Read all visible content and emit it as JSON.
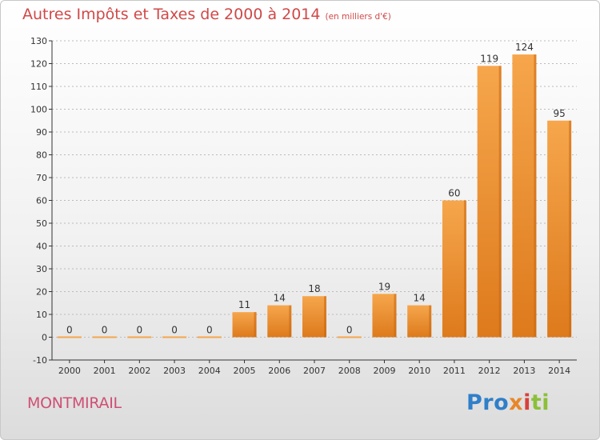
{
  "header": {
    "title": "Autres Impôts et Taxes de 2000 à 2014",
    "subtitle": "(en milliers d'€)"
  },
  "footer": {
    "place": "MONTMIRAIL",
    "logo": [
      "Pro",
      "x",
      "i",
      "ti"
    ]
  },
  "colors": {
    "title": "#d04848",
    "place": "#cf4f74",
    "bar_light": "#f6a64c",
    "bar_dark": "#dd7a1c",
    "bar_side": "#c8660f",
    "axis": "#333333",
    "grid": "#bbbbbb"
  },
  "chart_data": {
    "type": "bar",
    "categories": [
      "2000",
      "2001",
      "2002",
      "2003",
      "2004",
      "2005",
      "2006",
      "2007",
      "2008",
      "2009",
      "2010",
      "2011",
      "2012",
      "2013",
      "2014"
    ],
    "values": [
      0,
      0,
      0,
      0,
      0,
      11,
      14,
      18,
      0,
      19,
      14,
      60,
      119,
      124,
      95
    ],
    "ylim": [
      -10,
      130
    ],
    "yticks": [
      -10,
      0,
      10,
      20,
      30,
      40,
      50,
      60,
      70,
      80,
      90,
      100,
      110,
      120,
      130
    ],
    "title": "Autres Impôts et Taxes de 2000 à 2014",
    "xlabel": "",
    "ylabel": "",
    "grid": "horizontal-dashed"
  }
}
